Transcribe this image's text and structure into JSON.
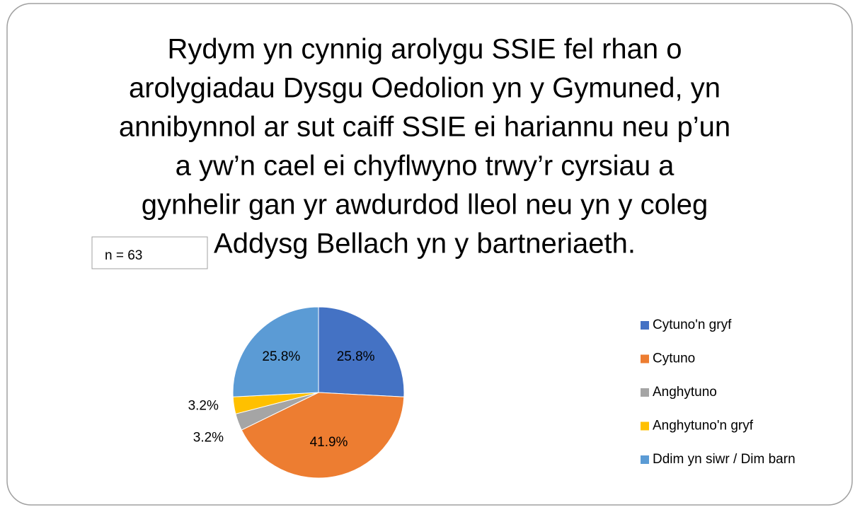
{
  "chart_data": {
    "type": "pie",
    "title": [
      "Rydym yn cynnig arolygu SSIE fel rhan o",
      "arolygiadau Dysgu Oedolion yn y Gymuned, yn",
      "annibynnol ar sut caiff SSIE ei hariannu neu p’un",
      "a yw’n cael ei chyflwyno trwy’r cyrsiau a",
      "gynhelir gan yr awdurdod lleol neu yn y coleg",
      "Addysg Bellach yn y bartneriaeth."
    ],
    "annotation": "n = 63",
    "categories": [
      "Cytuno'n gryf",
      "Cytuno",
      "Anghytuno",
      "Anghytuno'n gryf",
      "Ddim yn siwr / Dim barn"
    ],
    "values": [
      25.8,
      41.9,
      3.2,
      3.2,
      25.8
    ],
    "value_labels": [
      "25.8%",
      "41.9%",
      "3.2%",
      "3.2%",
      "25.8%"
    ],
    "colors": [
      "#4472c4",
      "#ed7d31",
      "#a5a5a5",
      "#ffc000",
      "#5b9bd5"
    ],
    "legend": "right"
  }
}
